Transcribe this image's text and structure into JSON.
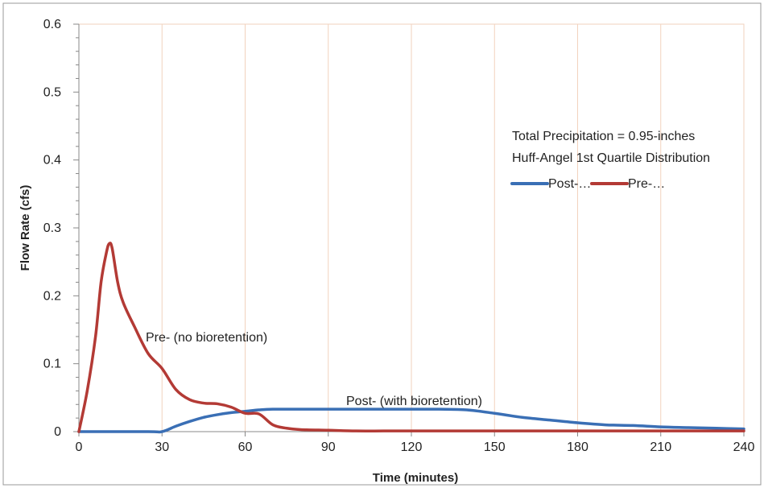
{
  "chart_data": {
    "type": "line",
    "xlabel": "Time (minutes)",
    "ylabel": "Flow Rate (cfs)",
    "xlim": [
      0,
      240
    ],
    "ylim": [
      0,
      0.6
    ],
    "x_ticks": [
      "0",
      "30",
      "60",
      "90",
      "120",
      "150",
      "180",
      "210",
      "240"
    ],
    "y_ticks": [
      "0",
      "0.1",
      "0.2",
      "0.3",
      "0.4",
      "0.5",
      "0.6"
    ],
    "grid": "vertical",
    "colors": {
      "post": "#3a6fb5",
      "pre": "#b33a35",
      "grid": "#f2d2bd",
      "frame": "#888888"
    },
    "annotations": {
      "precip": "Total Precipitation = 0.95-inches",
      "distribution": "Huff-Angel 1st Quartile Distribution",
      "pre_label": "Pre- (no bioretention)",
      "post_label": "Post- (with bioretention)"
    },
    "legend": {
      "placement": "right",
      "items": [
        {
          "label": "Post-…",
          "series": "post"
        },
        {
          "label": "Pre-…",
          "series": "pre"
        }
      ]
    },
    "series": [
      {
        "key": "post",
        "x": [
          0,
          25,
          30,
          35,
          40,
          45,
          50,
          55,
          60,
          65,
          70,
          80,
          90,
          100,
          110,
          120,
          130,
          140,
          150,
          160,
          170,
          180,
          190,
          200,
          210,
          220,
          230,
          240
        ],
        "values": [
          0,
          0,
          0,
          0.008,
          0.015,
          0.021,
          0.025,
          0.028,
          0.03,
          0.032,
          0.033,
          0.033,
          0.033,
          0.033,
          0.033,
          0.033,
          0.033,
          0.032,
          0.027,
          0.021,
          0.017,
          0.013,
          0.01,
          0.009,
          0.007,
          0.006,
          0.005,
          0.004
        ]
      },
      {
        "key": "pre",
        "x": [
          0,
          3,
          6,
          8,
          10,
          11,
          12,
          14,
          16,
          20,
          25,
          30,
          35,
          40,
          45,
          50,
          55,
          60,
          65,
          70,
          75,
          80,
          90,
          100,
          110,
          120,
          150,
          180,
          210,
          240
        ],
        "values": [
          0,
          0.06,
          0.14,
          0.22,
          0.265,
          0.277,
          0.27,
          0.22,
          0.19,
          0.155,
          0.115,
          0.093,
          0.062,
          0.047,
          0.042,
          0.041,
          0.036,
          0.027,
          0.026,
          0.01,
          0.005,
          0.003,
          0.002,
          0.001,
          0.001,
          0.001,
          0.001,
          0.001,
          0.001,
          0.001
        ]
      }
    ]
  }
}
